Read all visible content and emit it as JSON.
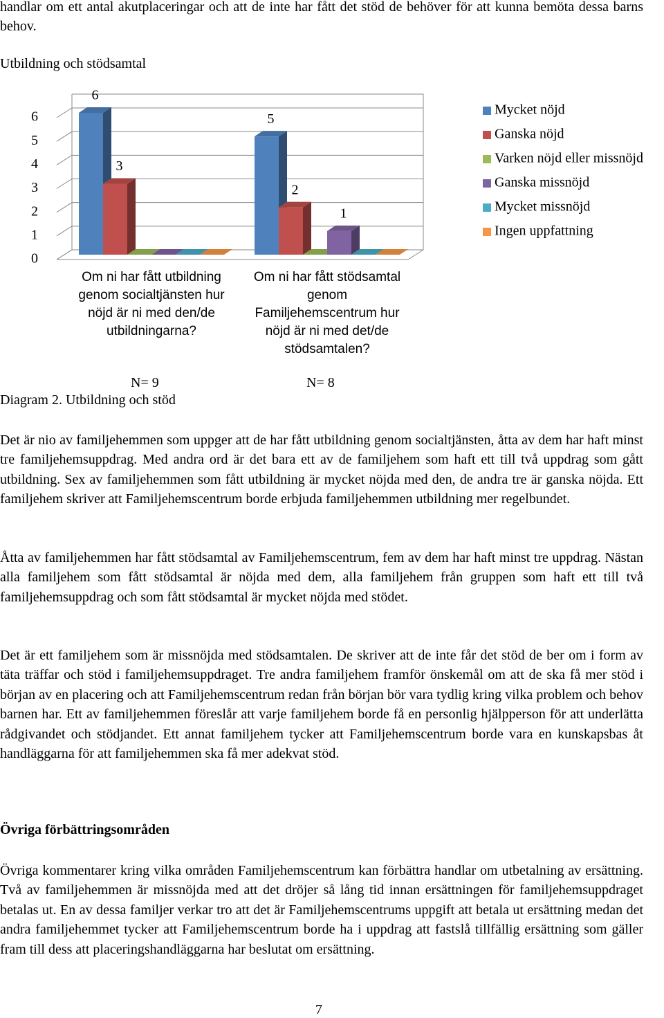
{
  "intro": "handlar om ett antal akutplaceringar och att de inte har fått det stöd de behöver för att kunna bemöta dessa barns behov.",
  "chart_data": {
    "type": "bar",
    "title": "Utbildning och stödsamtal",
    "categories": [
      "Om ni har fått utbildning genom socialtjänsten hur nöjd är ni med den/de utbildningarna?",
      "Om ni har fått stödsamtal genom Familjehemscentrum hur nöjd är ni med det/de stödsamtalen?"
    ],
    "annotations": [
      "N= 9",
      "N= 8"
    ],
    "series": [
      {
        "name": "Mycket nöjd",
        "color": "#4f81bd",
        "values": [
          6,
          5
        ]
      },
      {
        "name": "Ganska nöjd",
        "color": "#c0504d",
        "values": [
          3,
          2
        ]
      },
      {
        "name": "Varken nöjd eller missnöjd",
        "color": "#9bbb59",
        "values": [
          0,
          0
        ]
      },
      {
        "name": "Ganska missnöjd",
        "color": "#8064a2",
        "values": [
          0,
          1
        ]
      },
      {
        "name": "Mycket missnöjd",
        "color": "#4bacc6",
        "values": [
          0,
          0
        ]
      },
      {
        "name": "Ingen uppfattning",
        "color": "#f79646",
        "values": [
          0,
          0
        ]
      }
    ],
    "ylim": [
      0,
      6
    ],
    "yticks": [
      0,
      1,
      2,
      3,
      4,
      5,
      6
    ],
    "grid": true,
    "legend": "right"
  },
  "caption": "Diagram 2. Utbildning och stöd",
  "paragraphs": [
    "Det är nio av familjehemmen som uppger att de har fått utbildning genom socialtjänsten, åtta av dem har haft minst tre familjehemsuppdrag. Med andra ord är det bara ett av de familjehem som haft ett till två uppdrag som gått utbildning. Sex av familjehemmen som fått utbildning är mycket nöjda med den, de andra tre är ganska nöjda. Ett familjehem skriver att Familjehemscentrum borde erbjuda familjehemmen utbildning mer regelbundet.",
    "Åtta av familjehemmen har fått stödsamtal av Familjehemscentrum, fem av dem har haft minst tre uppdrag. Nästan alla familjehem som fått stödsamtal är nöjda med dem, alla familjehem från gruppen som haft ett till två familjehemsuppdrag och som fått stödsamtal är mycket nöjda med stödet.",
    "Det är ett familjehem som är missnöjda med stödsamtalen. De skriver att de inte får det stöd de ber om i form av täta träffar och stöd i familjehemsuppdraget. Tre andra familjehem framför önskemål om att de ska få mer stöd i början av en placering och att Familjehemscentrum redan från början bör vara tydlig kring vilka problem och behov barnen har. Ett av familjehemmen föreslår att varje familjehem borde få en personlig hjälpperson för att underlätta rådgivandet och stödjandet. Ett annat familjehem tycker att Familjehemscentrum borde vara en kunskapsbas åt handläggarna för att familjehemmen ska få mer adekvat stöd."
  ],
  "heading": "Övriga förbättringsområden",
  "closing": "Övriga kommentarer kring vilka områden Familjehemscentrum kan förbättra handlar om utbetalning av ersättning. Två av familjehemmen är missnöjda med att det dröjer så lång tid innan ersättningen för familjehemsuppdraget betalas ut. En av dessa familjer verkar tro att det är Familjehemscentrums uppgift att betala ut ersättning medan det andra familjehemmet tycker att Familjehemscentrum borde ha i uppdrag att fastslå tillfällig ersättning som gäller fram till dess att placeringshandläggarna har beslutat om ersättning.",
  "page_number": "7"
}
